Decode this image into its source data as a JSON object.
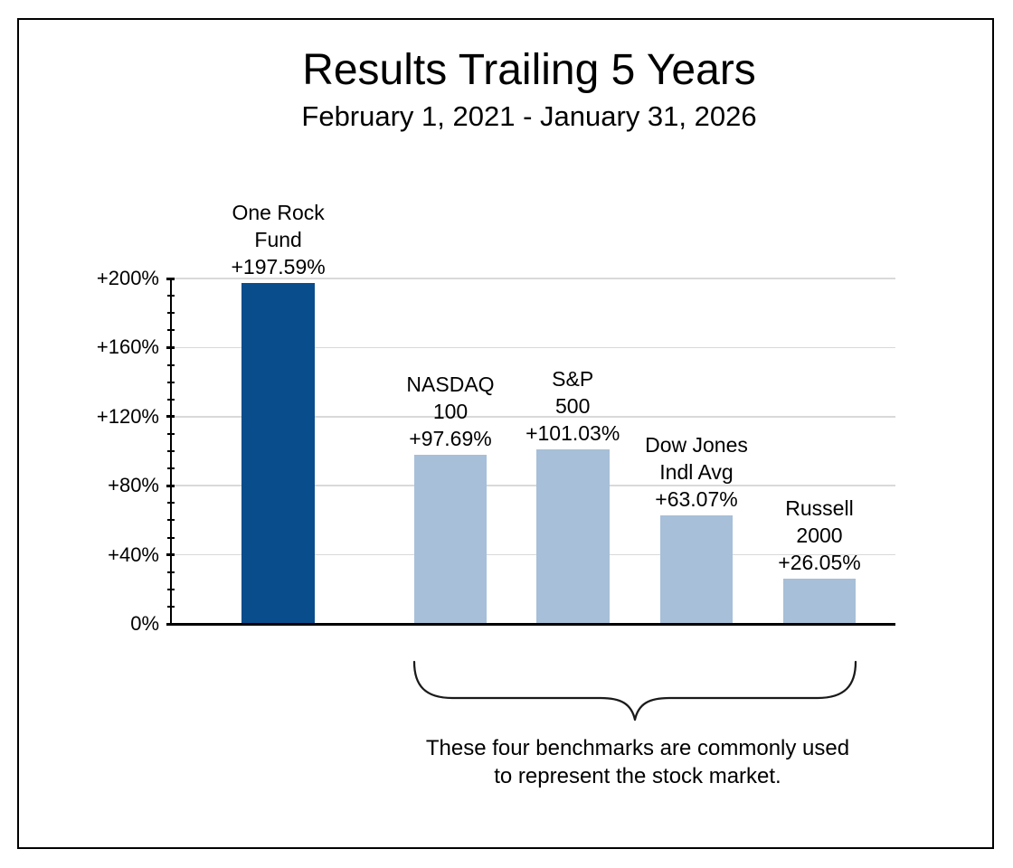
{
  "header": {
    "title": "Results Trailing 5 Years",
    "subtitle": "February 1, 2021 - January 31, 2026"
  },
  "annotation": {
    "lines": [
      "These four benchmarks are commonly used",
      "to represent the stock market."
    ]
  },
  "chart_data": {
    "type": "bar",
    "title": "Results Trailing 5 Years",
    "subtitle": "February 1, 2021 - January 31, 2026",
    "categories": [
      "One Rock Fund",
      "NASDAQ 100",
      "S&P 500",
      "Dow Jones Indl Avg",
      "Russell 2000"
    ],
    "values": [
      197.59,
      97.69,
      101.03,
      63.07,
      26.05
    ],
    "value_labels": [
      "+197.59%",
      "+97.69%",
      "+101.03%",
      "+63.07%",
      "+26.05%"
    ],
    "bars": [
      {
        "name_lines": [
          "One Rock",
          "Fund"
        ],
        "value": 197.59,
        "value_label": "+197.59%",
        "color": "#0a4d8c",
        "center_frac": 0.147
      },
      {
        "name_lines": [
          "NASDAQ",
          "100"
        ],
        "value": 97.69,
        "value_label": "+97.69%",
        "color": "#a7bfd8",
        "center_frac": 0.385
      },
      {
        "name_lines": [
          "S&P",
          "500"
        ],
        "value": 101.03,
        "value_label": "+101.03%",
        "color": "#a7bfd8",
        "center_frac": 0.554
      },
      {
        "name_lines": [
          "Dow Jones",
          "Indl Avg"
        ],
        "value": 63.07,
        "value_label": "+63.07%",
        "color": "#a7bfd8",
        "center_frac": 0.725
      },
      {
        "name_lines": [
          "Russell",
          "2000"
        ],
        "value": 26.05,
        "value_label": "+26.05%",
        "color": "#a7bfd8",
        "center_frac": 0.895
      }
    ],
    "xlabel": "",
    "ylabel": "",
    "ylim": [
      0,
      200
    ],
    "yticks": [
      {
        "value": 0,
        "label": "0%"
      },
      {
        "value": 40,
        "label": "+40%"
      },
      {
        "value": 80,
        "label": "+80%"
      },
      {
        "value": 120,
        "label": "+120%"
      },
      {
        "value": 160,
        "label": "+160%"
      },
      {
        "value": 200,
        "label": "+200%"
      }
    ],
    "minor_tick_step": 10,
    "grid": "horizontal",
    "legend": "none",
    "bar_width_frac": 0.101,
    "annotation": "These four benchmarks are commonly used to represent the stock market.",
    "colors": {
      "highlight_bar": "#0a4d8c",
      "benchmark_bar": "#a7bfd8",
      "gridline": "#d9d9d9",
      "axis": "#000000",
      "text": "#000000"
    }
  }
}
